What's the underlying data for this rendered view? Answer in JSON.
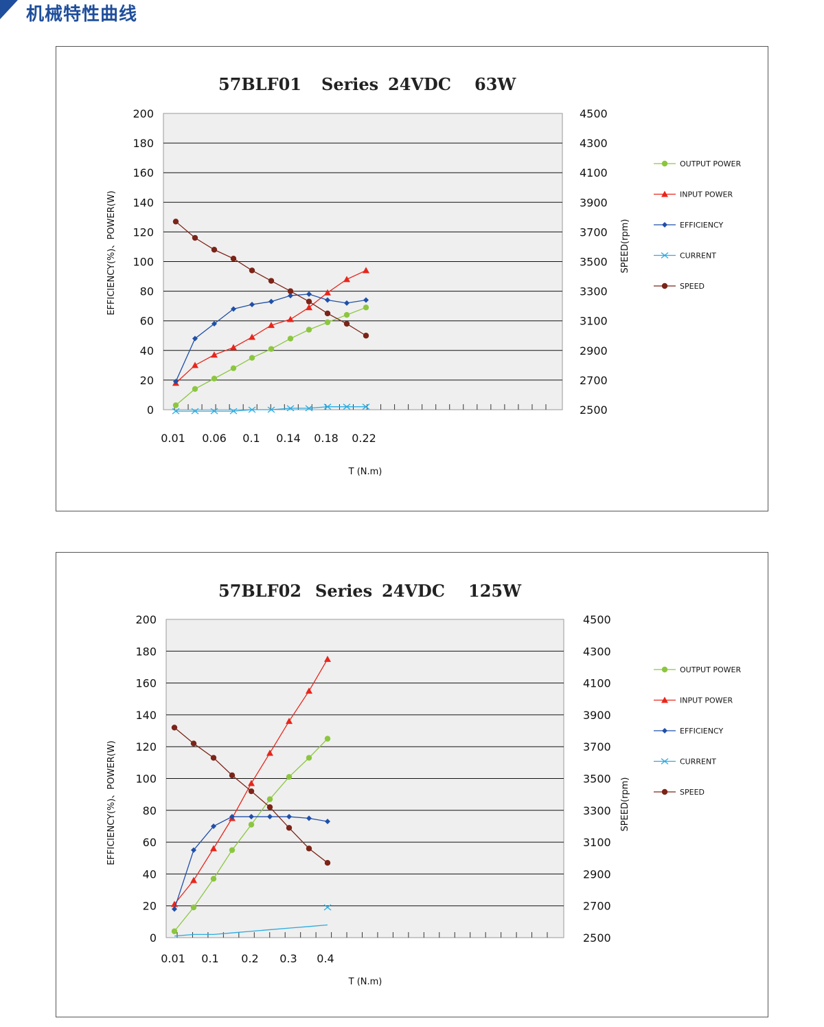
{
  "page": {
    "heading": "机械特性曲线",
    "accent": "#1f4e9c"
  },
  "legend": [
    {
      "key": "output",
      "label": "OUTPUT POWER",
      "color": "#8cc63f",
      "marker": "circle"
    },
    {
      "key": "input",
      "label": "INPUT POWER",
      "color": "#e8261c",
      "marker": "triangle"
    },
    {
      "key": "efficiency",
      "label": "EFFICIENCY",
      "color": "#1f4fa8",
      "marker": "diamond"
    },
    {
      "key": "current",
      "label": "CURRENT",
      "color": "#29abe2",
      "marker": "x"
    },
    {
      "key": "speed",
      "label": "SPEED",
      "color": "#7b2418",
      "marker": "circle"
    }
  ],
  "chart_data": [
    {
      "type": "line",
      "title_parts": [
        "57BLF01",
        "Series",
        "24VDC",
        "63W"
      ],
      "xlabel": "T (N.m)",
      "ylabel_left": "EFFICIENCY(%)、POWER(W)",
      "ylabel_right": "SPEED(rpm)",
      "ylim_left": [
        0,
        200
      ],
      "ylim_right": [
        2500,
        4500
      ],
      "yticks_left": [
        "200",
        "180",
        "160",
        "140",
        "120",
        "100",
        "80",
        "60",
        "40",
        "20",
        "0"
      ],
      "yticks_right": [
        "4500",
        "4300",
        "4100",
        "3900",
        "3700",
        "3500",
        "3300",
        "3100",
        "2900",
        "2700",
        "2500"
      ],
      "xticks": [
        "0.01",
        "0.06",
        "0.1",
        "0.14",
        "0.18",
        "0.22"
      ],
      "x": [
        0.01,
        0.03,
        0.05,
        0.07,
        0.09,
        0.11,
        0.13,
        0.15,
        0.17,
        0.19,
        0.21
      ],
      "series": [
        {
          "key": "output",
          "axis": "left",
          "values": [
            3,
            14,
            21,
            28,
            35,
            41,
            48,
            54,
            59,
            64,
            69
          ]
        },
        {
          "key": "input",
          "axis": "left",
          "values": [
            18,
            30,
            37,
            42,
            49,
            57,
            61,
            69,
            79,
            88,
            94
          ]
        },
        {
          "key": "efficiency",
          "axis": "left",
          "values": [
            19,
            48,
            58,
            68,
            71,
            73,
            77,
            78,
            74,
            72,
            74
          ]
        },
        {
          "key": "current",
          "axis": "left",
          "values": [
            -1,
            -1,
            -1,
            -1,
            0,
            0,
            1,
            1,
            2,
            2,
            2
          ]
        },
        {
          "key": "speed",
          "axis": "right",
          "values": [
            3770,
            3660,
            3580,
            3520,
            3440,
            3370,
            3300,
            3230,
            3150,
            3080,
            3000
          ]
        }
      ]
    },
    {
      "type": "line",
      "title_parts": [
        "57BLF02",
        "Series",
        "24VDC",
        "125W"
      ],
      "xlabel": "T (N.m)",
      "ylabel_left": "EFFICIENCY(%)、POWER(W)",
      "ylabel_right": "SPEED(rpm)",
      "ylim_left": [
        0,
        200
      ],
      "ylim_right": [
        2500,
        4500
      ],
      "yticks_left": [
        "200",
        "180",
        "160",
        "140",
        "120",
        "100",
        "80",
        "60",
        "40",
        "20",
        "0"
      ],
      "yticks_right": [
        "4500",
        "4300",
        "4100",
        "3900",
        "3700",
        "3500",
        "3300",
        "3100",
        "2900",
        "2700",
        "2500"
      ],
      "xticks": [
        "0.01",
        "0.1",
        "0.2",
        "0.3",
        "0.4"
      ],
      "x": [
        0.01,
        0.06,
        0.11,
        0.16,
        0.21,
        0.26,
        0.31,
        0.36,
        0.41
      ],
      "series": [
        {
          "key": "output",
          "axis": "left",
          "values": [
            4,
            19,
            37,
            55,
            71,
            87,
            101,
            113,
            125
          ]
        },
        {
          "key": "input",
          "axis": "left",
          "values": [
            21,
            36,
            56,
            75,
            97,
            116,
            136,
            155,
            175
          ]
        },
        {
          "key": "efficiency",
          "axis": "left",
          "values": [
            18,
            55,
            70,
            76,
            76,
            76,
            76,
            75,
            73
          ]
        },
        {
          "key": "current",
          "axis": "left",
          "values": [
            1,
            2,
            2,
            3,
            4,
            5,
            6,
            7,
            8
          ],
          "last_marker_value": 19
        },
        {
          "key": "speed",
          "axis": "right",
          "values": [
            3820,
            3720,
            3630,
            3520,
            3420,
            3320,
            3190,
            3060,
            2970
          ]
        }
      ]
    }
  ]
}
